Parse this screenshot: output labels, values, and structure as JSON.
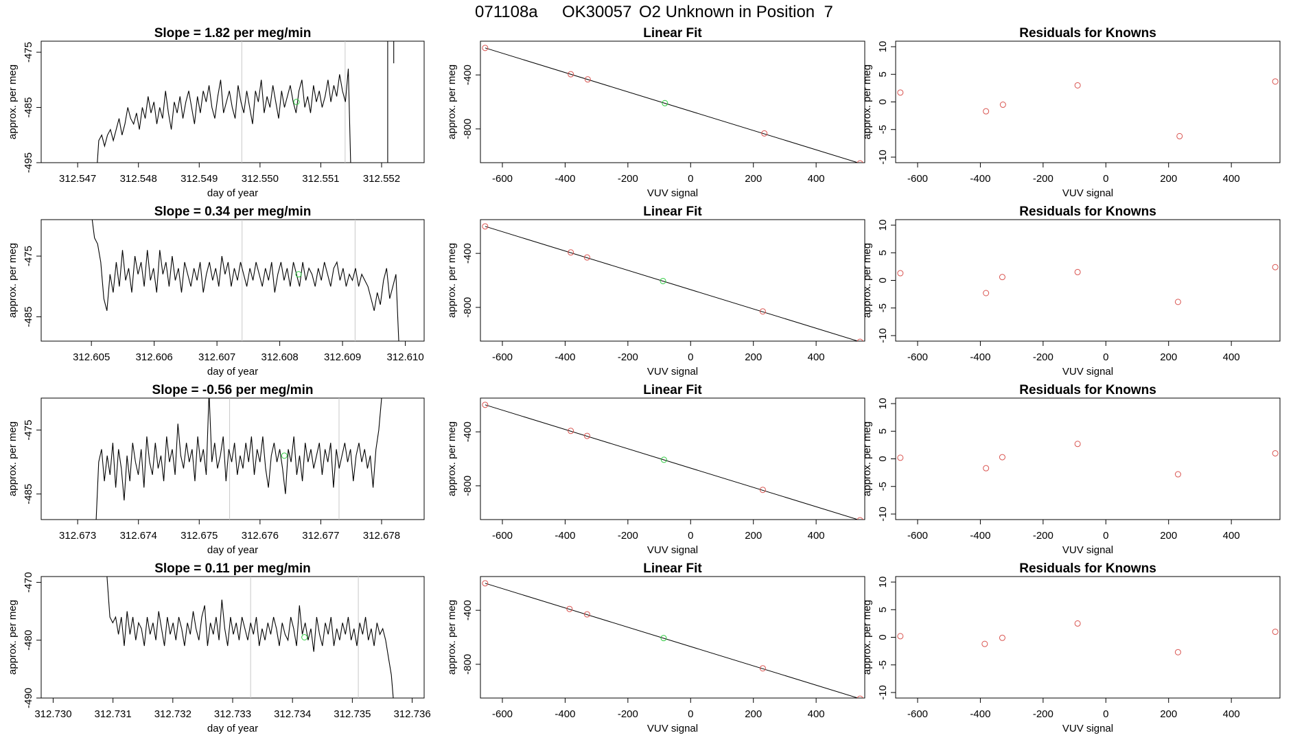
{
  "page_title": {
    "run_id": "071108a",
    "sample_id": "OK30057",
    "description": "O2 Unknown in Position  7"
  },
  "colors": {
    "known_point": "#d9534f",
    "unknown_point": "#2ecc40",
    "trace_line": "#000000",
    "marker_line": "#c8c8c8"
  },
  "chart_data": [
    {
      "type": "line",
      "row": 0,
      "panel": "time-series",
      "title": "Slope =  1.82  per meg/min",
      "xlabel": "day of year",
      "ylabel": "approx. per meg",
      "xlim": [
        312.5464,
        312.5527
      ],
      "ylim": [
        -495,
        -473
      ],
      "xticks": [
        312.547,
        312.548,
        312.549,
        312.55,
        312.551,
        312.552
      ],
      "xtick_labels": [
        "312.547",
        "312.548",
        "312.549",
        "312.550",
        "312.551",
        "312.552"
      ],
      "yticks": [
        -495,
        -485,
        -475
      ],
      "ytick_labels": [
        "-495",
        "-485",
        "-475"
      ],
      "trace_x_start": 312.5473,
      "trace_x_end": 312.5515,
      "trace": [
        -499,
        -491,
        -490,
        -492,
        -490,
        -489,
        -491,
        -489,
        -487,
        -490,
        -488,
        -485,
        -487,
        -488,
        -486,
        -489,
        -485,
        -487,
        -483,
        -486,
        -484,
        -488,
        -485,
        -487,
        -482,
        -486,
        -489,
        -484,
        -486,
        -483,
        -487,
        -484,
        -482,
        -485,
        -488,
        -483,
        -486,
        -482,
        -484,
        -481,
        -485,
        -487,
        -483,
        -480,
        -486,
        -484,
        -482,
        -485,
        -487,
        -481,
        -484,
        -486,
        -482,
        -485,
        -488,
        -482,
        -484,
        -480,
        -486,
        -483,
        -485,
        -481,
        -484,
        -487,
        -482,
        -485,
        -483,
        -481,
        -484,
        -486,
        -482,
        -480,
        -485,
        -483,
        -486,
        -481,
        -484,
        -482,
        -485,
        -483,
        -480,
        -484,
        -481,
        -483,
        -479,
        -482,
        -484,
        -478,
        -499
      ],
      "extra_segments": [
        [
          [
            312.5521,
            -499
          ],
          [
            312.5521,
            -473
          ]
        ],
        [
          [
            312.5522,
            -473
          ],
          [
            312.5522,
            -477
          ]
        ]
      ],
      "markers": [
        312.5497,
        312.5514
      ],
      "unknown_point": {
        "x": 312.5506,
        "y": -484
      }
    },
    {
      "type": "scatter",
      "row": 0,
      "panel": "linear-fit",
      "title": "Linear Fit",
      "xlabel": "VUV signal",
      "ylabel": "approx. per meg",
      "xlim": [
        -670,
        555
      ],
      "ylim": [
        -1050,
        -150
      ],
      "xticks": [
        -600,
        -400,
        -200,
        0,
        200,
        400
      ],
      "xtick_labels": [
        "-600",
        "-400",
        "-200",
        "0",
        "200",
        "400"
      ],
      "yticks": [
        -800,
        -400
      ],
      "ytick_labels": [
        "-800",
        "-400"
      ],
      "known_x": [
        -655,
        -382,
        -328,
        235,
        540
      ],
      "known_y": [
        -200,
        -395,
        -433,
        -833,
        -1055
      ],
      "unknown": {
        "x": -82,
        "y": -609
      },
      "fit": {
        "slope": -0.705,
        "intercept": -666
      }
    },
    {
      "type": "scatter",
      "row": 0,
      "panel": "residuals",
      "title": "Residuals for Knowns",
      "xlabel": "VUV signal",
      "ylabel": "approx. per meg",
      "xlim": [
        -670,
        555
      ],
      "ylim": [
        -11,
        11
      ],
      "xticks": [
        -600,
        -400,
        -200,
        0,
        200,
        400
      ],
      "xtick_labels": [
        "-600",
        "-400",
        "-200",
        "0",
        "200",
        "400"
      ],
      "yticks": [
        -10,
        -5,
        0,
        5,
        10
      ],
      "ytick_labels": [
        "-10",
        "-5",
        "0",
        "5",
        "10"
      ],
      "x": [
        -655,
        -382,
        -328,
        -90,
        235,
        540
      ],
      "y": [
        1.7,
        -1.7,
        -0.5,
        3.0,
        -6.2,
        3.7
      ]
    },
    {
      "type": "line",
      "row": 1,
      "panel": "time-series",
      "title": "Slope =  0.34  per meg/min",
      "xlabel": "day of year",
      "ylabel": "approx. per meg",
      "xlim": [
        312.6042,
        312.6103
      ],
      "ylim": [
        -489,
        -469
      ],
      "xticks": [
        312.605,
        312.606,
        312.607,
        312.608,
        312.609,
        312.61
      ],
      "xtick_labels": [
        "312.605",
        "312.606",
        "312.607",
        "312.608",
        "312.609",
        "312.610"
      ],
      "yticks": [
        -485,
        -475
      ],
      "ytick_labels": [
        "-485",
        "-475"
      ],
      "trace_x_start": 312.605,
      "trace_x_end": 312.6099,
      "trace": [
        -468,
        -472,
        -473,
        -476,
        -482,
        -484,
        -478,
        -481,
        -476,
        -480,
        -474,
        -479,
        -477,
        -481,
        -475,
        -478,
        -476,
        -480,
        -474,
        -479,
        -477,
        -481,
        -474,
        -478,
        -476,
        -480,
        -475,
        -479,
        -477,
        -481,
        -476,
        -478,
        -480,
        -477,
        -479,
        -476,
        -481,
        -478,
        -476,
        -479,
        -477,
        -480,
        -475,
        -478,
        -476,
        -480,
        -477,
        -479,
        -476,
        -478,
        -480,
        -477,
        -479,
        -476,
        -478,
        -480,
        -477,
        -479,
        -476,
        -481,
        -478,
        -476,
        -479,
        -477,
        -480,
        -476,
        -478,
        -480,
        -476,
        -479,
        -477,
        -478,
        -480,
        -477,
        -479,
        -476,
        -478,
        -480,
        -477,
        -476,
        -479,
        -477,
        -480,
        -478,
        -479,
        -477,
        -480,
        -478,
        -479,
        -480,
        -482,
        -484,
        -481,
        -483,
        -479,
        -477,
        -482,
        -480,
        -478,
        -490
      ],
      "extra_segments": [],
      "markers": [
        312.6074,
        312.6092
      ],
      "unknown_point": {
        "x": 312.6083,
        "y": -478
      }
    },
    {
      "type": "scatter",
      "row": 1,
      "panel": "linear-fit",
      "title": "Linear Fit",
      "xlabel": "VUV signal",
      "ylabel": "approx. per meg",
      "xlim": [
        -670,
        555
      ],
      "ylim": [
        -1050,
        -150
      ],
      "xticks": [
        -600,
        -400,
        -200,
        0,
        200,
        400
      ],
      "xtick_labels": [
        "-600",
        "-400",
        "-200",
        "0",
        "200",
        "400"
      ],
      "yticks": [
        -800,
        -400
      ],
      "ytick_labels": [
        "-800",
        "-400"
      ],
      "known_x": [
        -655,
        -382,
        -330,
        230,
        540
      ],
      "known_y": [
        -200,
        -393,
        -430,
        -830,
        -1055
      ],
      "unknown": {
        "x": -88,
        "y": -605
      },
      "fit": {
        "slope": -0.705,
        "intercept": -666
      }
    },
    {
      "type": "scatter",
      "row": 1,
      "panel": "residuals",
      "title": "Residuals for Knowns",
      "xlabel": "VUV signal",
      "ylabel": "approx. per meg",
      "xlim": [
        -670,
        555
      ],
      "ylim": [
        -11,
        11
      ],
      "xticks": [
        -600,
        -400,
        -200,
        0,
        200,
        400
      ],
      "xtick_labels": [
        "-600",
        "-400",
        "-200",
        "0",
        "200",
        "400"
      ],
      "yticks": [
        -10,
        -5,
        0,
        5,
        10
      ],
      "ytick_labels": [
        "-10",
        "-5",
        "0",
        "5",
        "10"
      ],
      "x": [
        -655,
        -382,
        -330,
        -90,
        230,
        540
      ],
      "y": [
        1.3,
        -2.3,
        0.6,
        1.5,
        -3.9,
        2.4
      ]
    },
    {
      "type": "line",
      "row": 2,
      "panel": "time-series",
      "title": "Slope =  -0.56  per meg/min",
      "xlabel": "day of year",
      "ylabel": "approx. per meg",
      "xlim": [
        312.6724,
        312.6787
      ],
      "ylim": [
        -489,
        -470
      ],
      "xticks": [
        312.673,
        312.674,
        312.675,
        312.676,
        312.677,
        312.678
      ],
      "xtick_labels": [
        "312.673",
        "312.674",
        "312.675",
        "312.676",
        "312.677",
        "312.678"
      ],
      "yticks": [
        -485,
        -475
      ],
      "ytick_labels": [
        "-485",
        "-475"
      ],
      "trace_x_start": 312.6733,
      "trace_x_end": 312.678,
      "trace": [
        -490,
        -480,
        -478,
        -483,
        -479,
        -482,
        -477,
        -484,
        -478,
        -481,
        -486,
        -479,
        -483,
        -477,
        -480,
        -482,
        -478,
        -484,
        -476,
        -480,
        -482,
        -477,
        -481,
        -479,
        -483,
        -476,
        -480,
        -478,
        -482,
        -474,
        -479,
        -481,
        -477,
        -480,
        -478,
        -483,
        -476,
        -480,
        -478,
        -482,
        -469,
        -480,
        -477,
        -481,
        -479,
        -476,
        -483,
        -478,
        -480,
        -477,
        -482,
        -479,
        -481,
        -477,
        -480,
        -476,
        -482,
        -478,
        -480,
        -476,
        -481,
        -484,
        -479,
        -477,
        -480,
        -478,
        -481,
        -485,
        -478,
        -480,
        -476,
        -482,
        -479,
        -483,
        -477,
        -480,
        -478,
        -481,
        -479,
        -477,
        -482,
        -478,
        -480,
        -477,
        -484,
        -478,
        -481,
        -479,
        -477,
        -480,
        -478,
        -483,
        -479,
        -477,
        -480,
        -478,
        -481,
        -479,
        -484,
        -478,
        -475,
        -470
      ],
      "extra_segments": [],
      "markers": [
        312.6755,
        312.6773
      ],
      "unknown_point": {
        "x": 312.6764,
        "y": -479
      }
    },
    {
      "type": "scatter",
      "row": 2,
      "panel": "linear-fit",
      "title": "Linear Fit",
      "xlabel": "VUV signal",
      "ylabel": "approx. per meg",
      "xlim": [
        -670,
        555
      ],
      "ylim": [
        -1050,
        -150
      ],
      "xticks": [
        -600,
        -400,
        -200,
        0,
        200,
        400
      ],
      "xtick_labels": [
        "-600",
        "-400",
        "-200",
        "0",
        "200",
        "400"
      ],
      "yticks": [
        -800,
        -400
      ],
      "ytick_labels": [
        "-800",
        "-400"
      ],
      "known_x": [
        -655,
        -382,
        -330,
        230,
        540
      ],
      "known_y": [
        -200,
        -393,
        -430,
        -830,
        -1055
      ],
      "unknown": {
        "x": -85,
        "y": -607
      },
      "fit": {
        "slope": -0.705,
        "intercept": -666
      }
    },
    {
      "type": "scatter",
      "row": 2,
      "panel": "residuals",
      "title": "Residuals for Knowns",
      "xlabel": "VUV signal",
      "ylabel": "approx. per meg",
      "xlim": [
        -670,
        555
      ],
      "ylim": [
        -11,
        11
      ],
      "xticks": [
        -600,
        -400,
        -200,
        0,
        200,
        400
      ],
      "xtick_labels": [
        "-600",
        "-400",
        "-200",
        "0",
        "200",
        "400"
      ],
      "yticks": [
        -10,
        -5,
        0,
        5,
        10
      ],
      "ytick_labels": [
        "-10",
        "-5",
        "0",
        "5",
        "10"
      ],
      "x": [
        -655,
        -382,
        -330,
        -90,
        230,
        540
      ],
      "y": [
        0.2,
        -1.7,
        0.3,
        2.7,
        -2.8,
        1.0
      ]
    },
    {
      "type": "line",
      "row": 3,
      "panel": "time-series",
      "title": "Slope =  0.11  per meg/min",
      "xlabel": "day of year",
      "ylabel": "approx. per meg",
      "xlim": [
        312.7298,
        312.7362
      ],
      "ylim": [
        -490,
        -469
      ],
      "xticks": [
        312.73,
        312.731,
        312.732,
        312.733,
        312.734,
        312.735,
        312.736
      ],
      "xtick_labels": [
        "312.730",
        "312.731",
        "312.732",
        "312.733",
        "312.734",
        "312.735",
        "312.736"
      ],
      "yticks": [
        -490,
        -480,
        -470
      ],
      "ytick_labels": [
        "-490",
        "-480",
        "-470"
      ],
      "trace_x_start": 312.7309,
      "trace_x_end": 312.7357,
      "trace": [
        -469,
        -476,
        -477,
        -476,
        -479,
        -476,
        -481,
        -475,
        -479,
        -476,
        -480,
        -477,
        -478,
        -481,
        -476,
        -479,
        -477,
        -480,
        -475,
        -478,
        -481,
        -476,
        -479,
        -477,
        -480,
        -476,
        -478,
        -481,
        -477,
        -479,
        -475,
        -478,
        -480,
        -476,
        -474,
        -481,
        -477,
        -479,
        -476,
        -480,
        -473,
        -478,
        -481,
        -476,
        -479,
        -477,
        -480,
        -476,
        -478,
        -480,
        -477,
        -479,
        -476,
        -481,
        -478,
        -480,
        -477,
        -479,
        -476,
        -478,
        -481,
        -477,
        -479,
        -480,
        -476,
        -478,
        -481,
        -474,
        -479,
        -477,
        -480,
        -478,
        -482,
        -476,
        -479,
        -481,
        -477,
        -479,
        -476,
        -481,
        -478,
        -480,
        -477,
        -479,
        -476,
        -480,
        -478,
        -481,
        -477,
        -479,
        -476,
        -480,
        -478,
        -481,
        -477,
        -479,
        -478,
        -480,
        -483,
        -486,
        -492
      ],
      "extra_segments": [],
      "markers": [
        312.7333,
        312.7351
      ],
      "unknown_point": {
        "x": 312.7342,
        "y": -479.5
      }
    },
    {
      "type": "scatter",
      "row": 3,
      "panel": "linear-fit",
      "title": "Linear Fit",
      "xlabel": "VUV signal",
      "ylabel": "approx. per meg",
      "xlim": [
        -670,
        555
      ],
      "ylim": [
        -1050,
        -150
      ],
      "xticks": [
        -600,
        -400,
        -200,
        0,
        200,
        400
      ],
      "xtick_labels": [
        "-600",
        "-400",
        "-200",
        "0",
        "200",
        "400"
      ],
      "yticks": [
        -800,
        -400
      ],
      "ytick_labels": [
        "-800",
        "-400"
      ],
      "known_x": [
        -655,
        -386,
        -330,
        230,
        540
      ],
      "known_y": [
        -200,
        -390,
        -430,
        -830,
        -1055
      ],
      "unknown": {
        "x": -86,
        "y": -606
      },
      "fit": {
        "slope": -0.705,
        "intercept": -666
      }
    },
    {
      "type": "scatter",
      "row": 3,
      "panel": "residuals",
      "title": "Residuals for Knowns",
      "xlabel": "VUV signal",
      "ylabel": "approx. per meg",
      "xlim": [
        -670,
        555
      ],
      "ylim": [
        -11,
        11
      ],
      "xticks": [
        -600,
        -400,
        -200,
        0,
        200,
        400
      ],
      "xtick_labels": [
        "-600",
        "-400",
        "-200",
        "0",
        "200",
        "400"
      ],
      "yticks": [
        -10,
        -5,
        0,
        5,
        10
      ],
      "ytick_labels": [
        "-10",
        "-5",
        "0",
        "5",
        "10"
      ],
      "x": [
        -655,
        -386,
        -330,
        -90,
        230,
        540
      ],
      "y": [
        0.2,
        -1.2,
        -0.1,
        2.5,
        -2.7,
        1.0
      ]
    }
  ]
}
